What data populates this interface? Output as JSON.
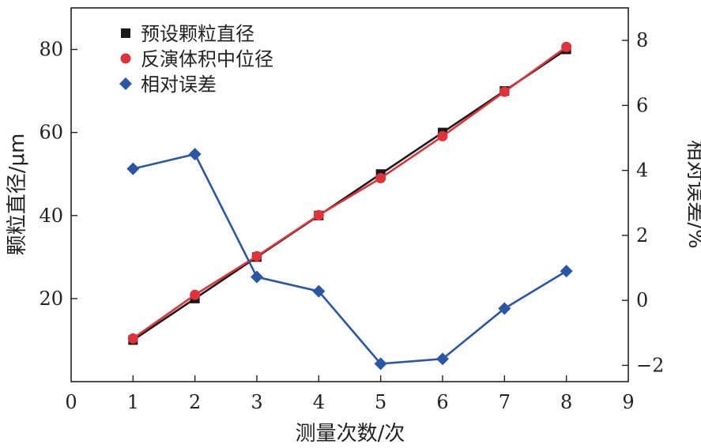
{
  "chart_data": {
    "type": "line",
    "xlabel": "测量次数/次",
    "ylabel_left": "颗粒直径/μm",
    "ylabel_right": "相对误差/%",
    "xlim": [
      0,
      9
    ],
    "x_ticks": [
      0,
      1,
      2,
      3,
      4,
      5,
      6,
      7,
      8,
      9
    ],
    "ylim_left": [
      0,
      90
    ],
    "y_ticks_left": [
      20,
      40,
      60,
      80
    ],
    "ylim_right": [
      -2.5,
      9
    ],
    "y_ticks_right": [
      -2,
      0,
      2,
      4,
      6,
      8
    ],
    "grid": false,
    "legend_position": "top-left",
    "x": [
      1,
      2,
      3,
      4,
      5,
      6,
      7,
      8
    ],
    "series": [
      {
        "name": "预设颗粒直径",
        "axis": "left",
        "marker": "square",
        "color": "#1a1a1a",
        "values": [
          10,
          20,
          30,
          40,
          50,
          60,
          70,
          80
        ]
      },
      {
        "name": "反演体积中位径",
        "axis": "left",
        "marker": "circle",
        "color": "#e0323a",
        "values": [
          10.4,
          20.9,
          30.2,
          40.1,
          49.0,
          59.1,
          69.8,
          80.6
        ]
      },
      {
        "name": "相对误差",
        "axis": "right",
        "marker": "diamond",
        "color": "#2b56a6",
        "values": [
          4.05,
          4.5,
          0.72,
          0.28,
          -1.95,
          -1.8,
          -0.25,
          0.9
        ]
      }
    ]
  }
}
